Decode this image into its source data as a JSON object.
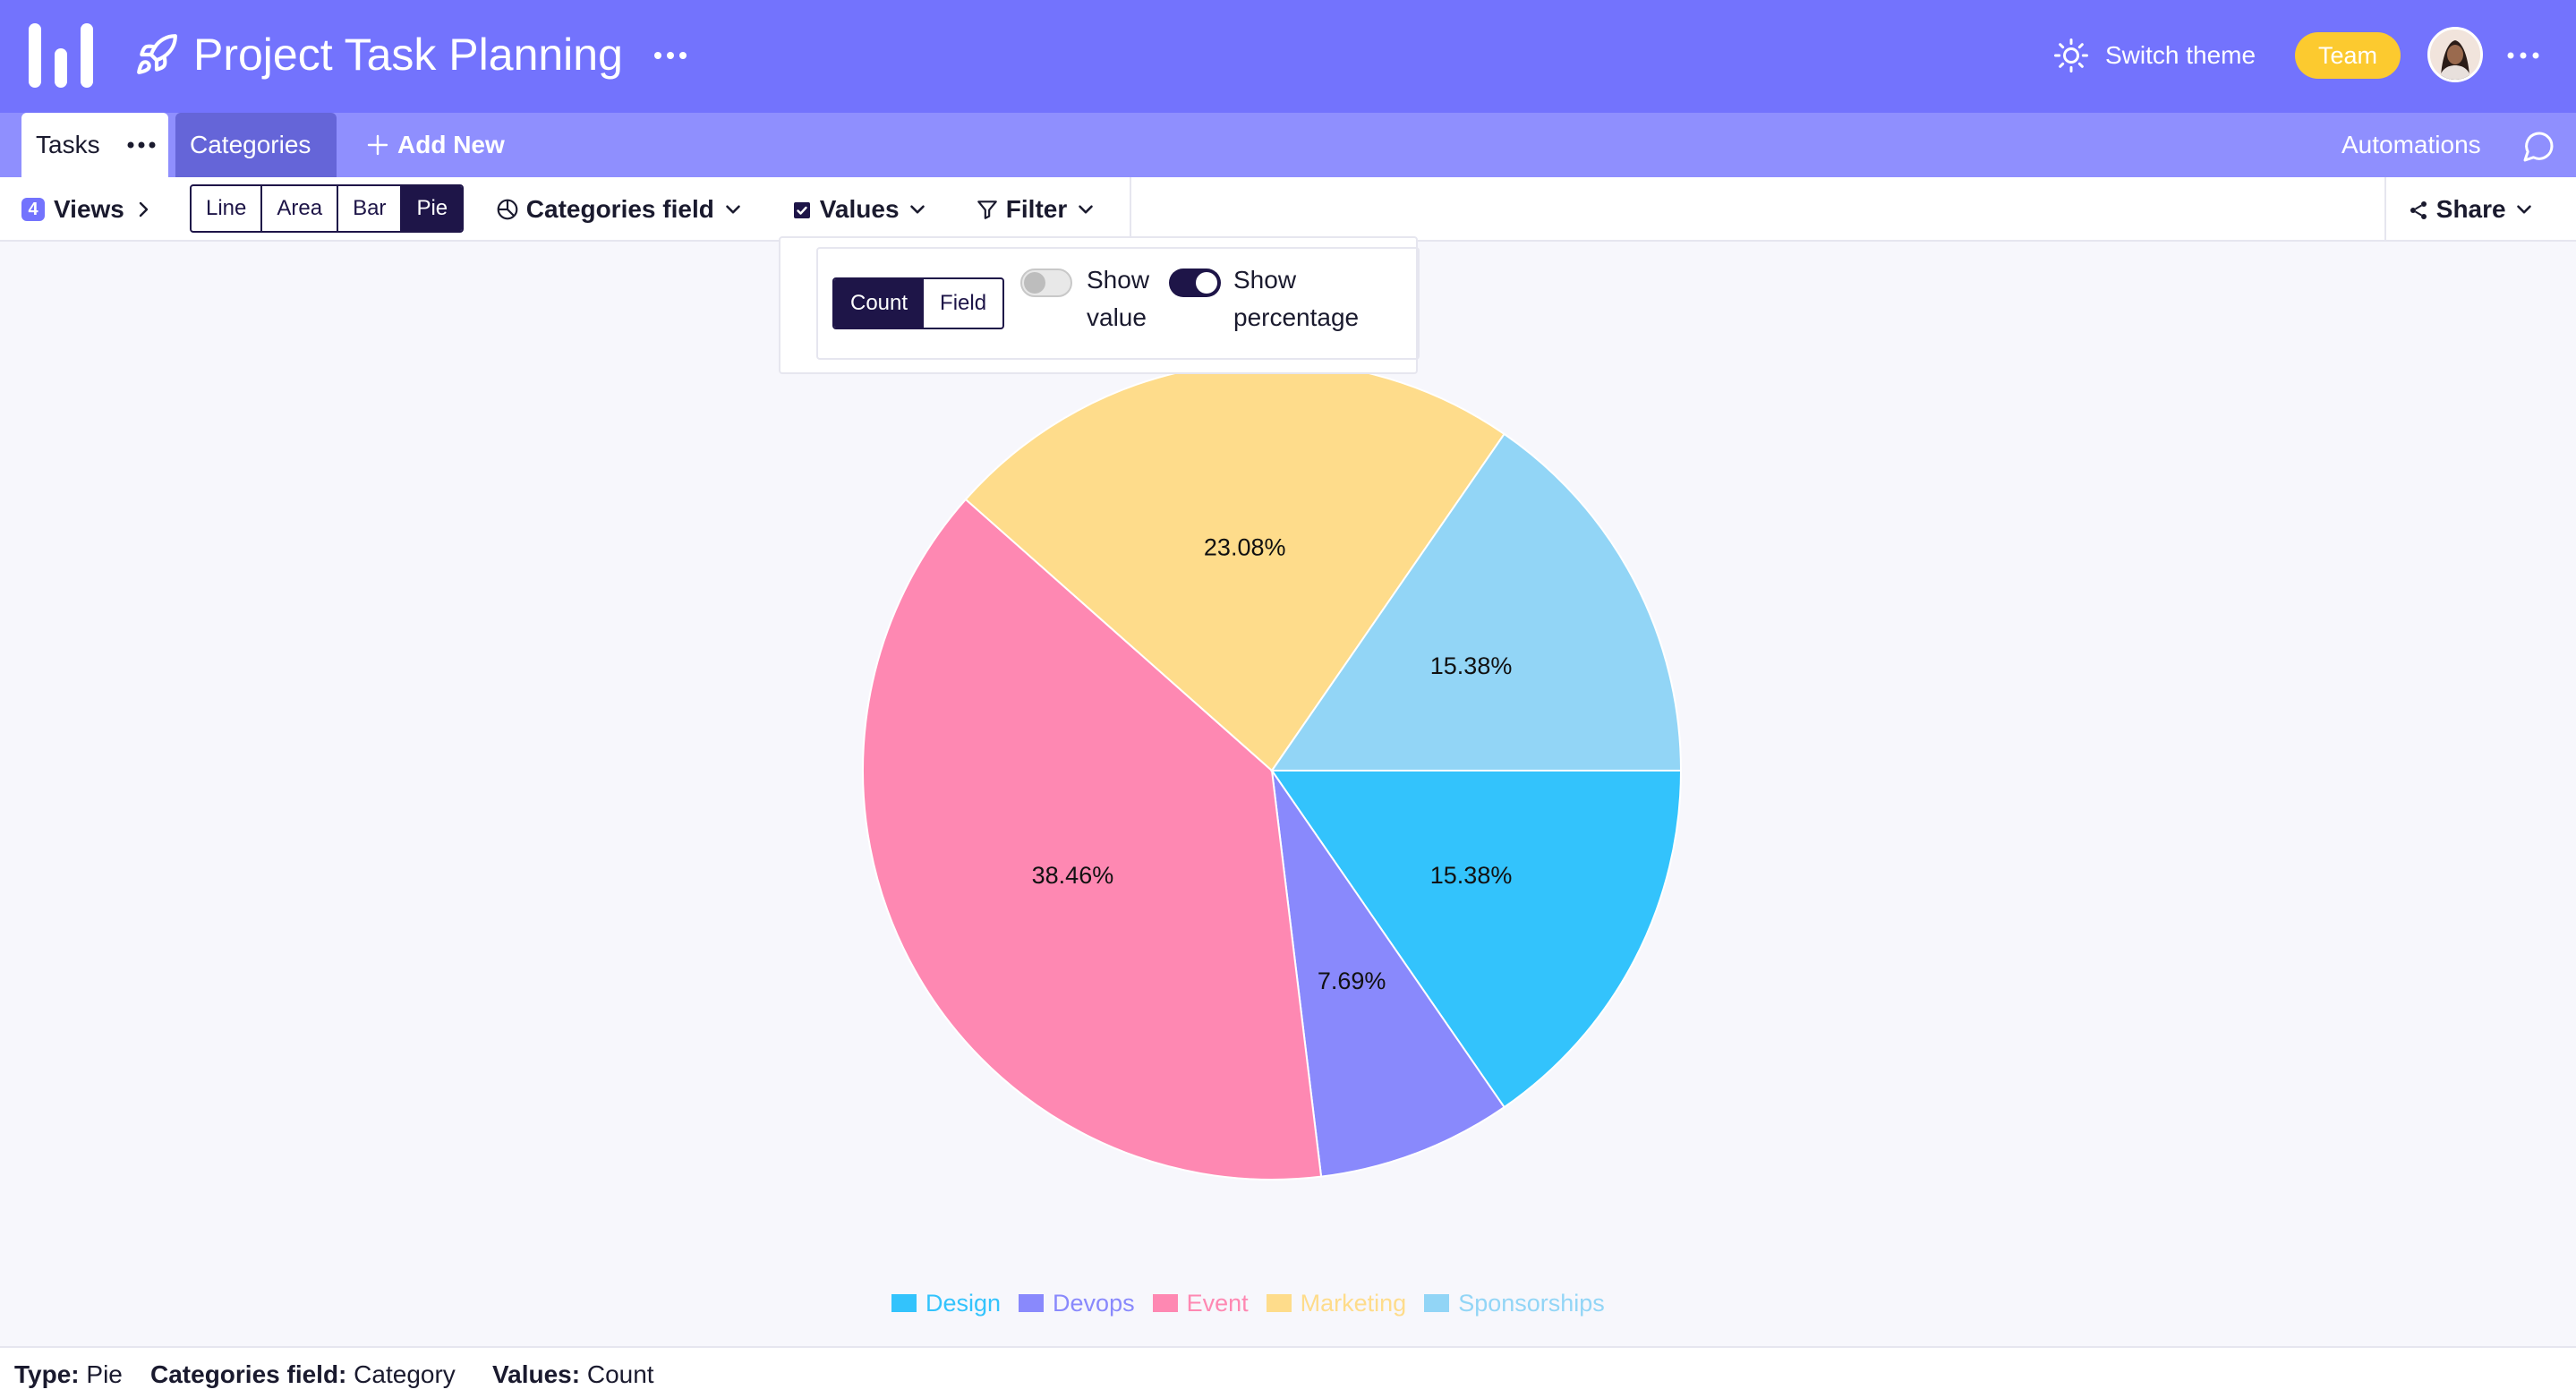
{
  "header": {
    "title": "Project Task Planning",
    "theme_label": "Switch theme",
    "team_badge": "Team",
    "icons": [
      "logo-icon",
      "rocket-icon",
      "more-icon",
      "sun-icon",
      "avatar",
      "more-icon"
    ]
  },
  "tabs": {
    "tasks": "Tasks",
    "categories": "Categories",
    "add_new": "Add New",
    "automations": "Automations"
  },
  "toolbar": {
    "views_count": "4",
    "views_label": "Views",
    "chart_types": [
      "Line",
      "Area",
      "Bar",
      "Pie"
    ],
    "active_type": "Pie",
    "categories_field": "Categories field",
    "values": "Values",
    "filter": "Filter",
    "share": "Share"
  },
  "values_popover": {
    "modes": [
      "Count",
      "Field"
    ],
    "active_mode": "Count",
    "show_value": {
      "label_1": "Show",
      "label_2": "value",
      "on": false
    },
    "show_percentage": {
      "label_1": "Show",
      "label_2": "percentage",
      "on": true
    }
  },
  "chart_data": {
    "type": "pie",
    "categories": [
      "Design",
      "Devops",
      "Event",
      "Marketing",
      "Sponsorships"
    ],
    "values": [
      2,
      1,
      5,
      3,
      2
    ],
    "labels": [
      "15.38%",
      "7.69%",
      "38.46%",
      "23.08%",
      "15.38%"
    ],
    "colors": [
      "#33c3fc",
      "#8989fc",
      "#fe88b2",
      "#fedc8b",
      "#92d5f6"
    ],
    "title": "",
    "legend_position": "bottom"
  },
  "footer": {
    "type_label": "Type:",
    "type_value": "Pie",
    "categories_label": "Categories field:",
    "categories_value": "Category",
    "values_label": "Values:",
    "values_value": "Count"
  }
}
